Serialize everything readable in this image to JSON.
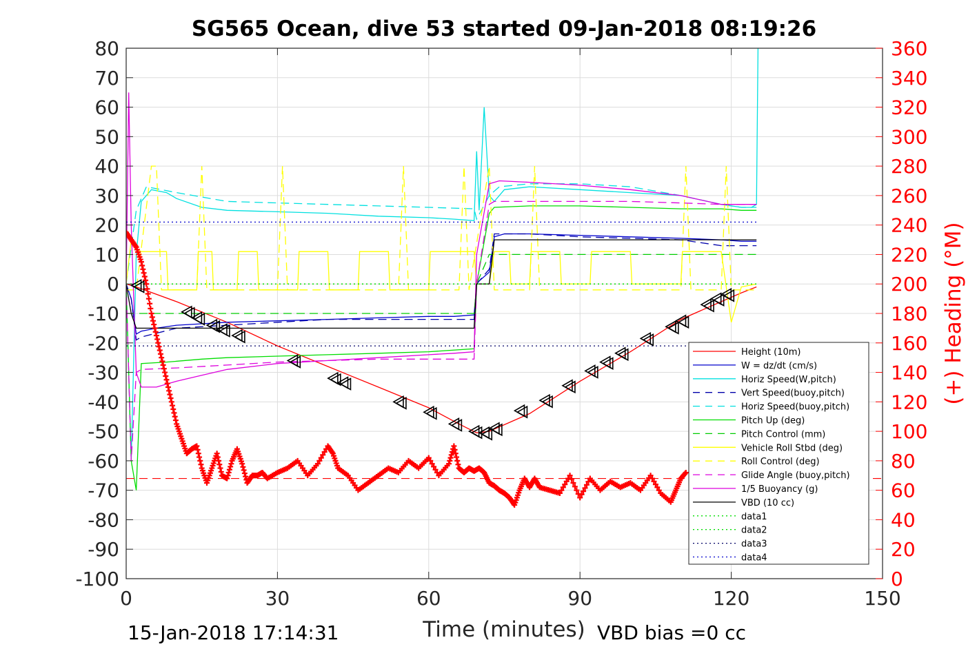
{
  "chart_data": {
    "type": "line",
    "title": "SG565 Ocean, dive 53 started 09-Jan-2018 08:19:26",
    "xlabel": "Time (minutes)",
    "ylabel_right": "(+) Heading (°M)",
    "footer_left": "15-Jan-2018 17:14:31",
    "footer_right": "VBD bias =0 cc",
    "xlim": [
      0,
      150
    ],
    "ylim_left": [
      -100,
      80
    ],
    "ylim_right": [
      0,
      360
    ],
    "x_ticks": [
      "0",
      "30",
      "60",
      "90",
      "120",
      "150"
    ],
    "y_ticks_left": [
      "80",
      "70",
      "60",
      "50",
      "40",
      "30",
      "20",
      "10",
      "0",
      "-10",
      "-20",
      "-30",
      "-40",
      "-50",
      "-60",
      "-70",
      "-80",
      "-90",
      "-100"
    ],
    "y_ticks_right": [
      "360",
      "340",
      "320",
      "300",
      "280",
      "260",
      "240",
      "220",
      "200",
      "180",
      "160",
      "140",
      "120",
      "100",
      "80",
      "60",
      "40",
      "20",
      "0"
    ],
    "grid": true,
    "legend_position": "lower-right",
    "series": [
      {
        "name": "Height (10m)",
        "color": "#ff0000",
        "style": "solid",
        "x": [
          0,
          2,
          10,
          20,
          30,
          40,
          50,
          60,
          66,
          69.5,
          72,
          80,
          90,
          100,
          110,
          118,
          122,
          125
        ],
        "y": [
          0,
          -1,
          -6,
          -13,
          -21,
          -28,
          -35,
          -42,
          -47.5,
          -50.5,
          -50,
          -44,
          -33,
          -23,
          -12,
          -6,
          -3,
          -1
        ]
      },
      {
        "name": "W = dz/dt (cm/s)",
        "color": "#0000cc",
        "style": "solid",
        "x": [
          0,
          1,
          2,
          3,
          6,
          10,
          15,
          20,
          30,
          40,
          50,
          60,
          65,
          69,
          69.5,
          70,
          72,
          73,
          75,
          80,
          90,
          100,
          110,
          118,
          122,
          125
        ],
        "y": [
          0,
          -5,
          -17,
          -16,
          -15,
          -14,
          -13.5,
          -13,
          -12.5,
          -12,
          -11.5,
          -11,
          -11,
          -10.5,
          0,
          1,
          4,
          16,
          17,
          17,
          16.5,
          16,
          15.5,
          15,
          14.5,
          14.5
        ]
      },
      {
        "name": "Horiz Speed(W,pitch)",
        "color": "#00e0e0",
        "style": "solid",
        "x": [
          0,
          1,
          2,
          3,
          5,
          8,
          10,
          15,
          20,
          30,
          40,
          50,
          60,
          65,
          69,
          69.5,
          70,
          71,
          72,
          73,
          75,
          80,
          90,
          100,
          110,
          118,
          122,
          124,
          125,
          125.3
        ],
        "y": [
          0,
          -60,
          10,
          28,
          32,
          31,
          29,
          26,
          25,
          24.5,
          24,
          23,
          22.5,
          22,
          21.5,
          45,
          25,
          60,
          30,
          28,
          32,
          33,
          32,
          31,
          30,
          27,
          26,
          26,
          27,
          80
        ]
      },
      {
        "name": "Vert Speed(buoy,pitch)",
        "color": "#0000aa",
        "style": "dashed",
        "x": [
          0,
          1,
          2,
          3,
          10,
          20,
          30,
          40,
          50,
          60,
          69,
          69.5,
          72,
          73,
          80,
          90,
          100,
          110,
          118,
          122,
          125
        ],
        "y": [
          0,
          -5,
          -19,
          -18,
          -15,
          -14,
          -13,
          -12,
          -12,
          -12,
          -12,
          0,
          5,
          17,
          17,
          16,
          15.5,
          15,
          13,
          13,
          13
        ]
      },
      {
        "name": "Horiz Speed(buoy,pitch)",
        "color": "#00e0e0",
        "style": "dashed",
        "x": [
          0,
          2,
          4,
          10,
          20,
          30,
          40,
          50,
          60,
          69,
          69.5,
          72,
          74,
          80,
          90,
          100,
          110,
          118,
          122,
          125
        ],
        "y": [
          0,
          25,
          33,
          31,
          28,
          27.5,
          27,
          26.5,
          26,
          25.5,
          22,
          30,
          33,
          34,
          34,
          33,
          30,
          27,
          26,
          26
        ]
      },
      {
        "name": "Pitch Up (deg)",
        "color": "#00dd00",
        "style": "solid",
        "x": [
          0,
          1,
          2,
          3,
          8,
          15,
          20,
          30,
          40,
          50,
          60,
          69,
          69.5,
          72,
          73,
          80,
          90,
          100,
          110,
          118,
          122,
          125
        ],
        "y": [
          0,
          -60,
          -70,
          -27,
          -26.5,
          -25.5,
          -25,
          -24.5,
          -24,
          -23.5,
          -23,
          -22,
          0,
          24,
          26,
          26.5,
          26.5,
          26,
          25.5,
          25.5,
          25,
          25
        ]
      },
      {
        "name": "Pitch Control (mm)",
        "color": "#00cc00",
        "style": "dashed",
        "x": [
          0,
          2,
          69,
          69.5,
          72,
          125
        ],
        "y": [
          -10,
          -10,
          -10,
          0,
          10,
          10
        ]
      },
      {
        "name": "Vehicle Roll Stbd (deg)",
        "color": "#ffff00",
        "style": "solid",
        "x": [
          0,
          1,
          2,
          3,
          8,
          8.3,
          14,
          14.3,
          17,
          17.3,
          22,
          22.3,
          26,
          26.3,
          34,
          34.3,
          40,
          40.3,
          46,
          46.3,
          52,
          52.3,
          60,
          60.3,
          69,
          69.5,
          72,
          73,
          76,
          76.3,
          80,
          80.3,
          86,
          86.3,
          92,
          92.3,
          100,
          100.3,
          110,
          110.3,
          118,
          119,
          120,
          122,
          125
        ],
        "y": [
          0,
          15,
          12,
          11,
          11,
          -2,
          -2,
          11,
          11,
          -2,
          -2,
          11,
          11,
          -2,
          -2,
          11,
          11,
          -2,
          -2,
          11,
          11,
          -2,
          -2,
          11,
          11,
          0,
          0,
          11,
          11,
          0,
          0,
          11,
          11,
          0,
          0,
          11,
          11,
          0,
          0,
          11,
          11,
          -1,
          -13,
          -1,
          0
        ]
      },
      {
        "name": "Roll Control (deg)",
        "color": "#ffff00",
        "style": "dashed",
        "x": [
          0,
          2,
          5,
          6,
          7,
          14,
          15,
          16,
          30,
          31,
          32,
          54,
          55,
          56,
          66,
          67,
          68,
          72,
          73,
          80,
          81,
          82,
          110,
          111,
          112,
          118,
          119,
          120,
          125
        ],
        "y": [
          -2,
          -2,
          40,
          40,
          -2,
          -2,
          40,
          -2,
          -2,
          40,
          -2,
          -2,
          40,
          -2,
          -2,
          40,
          -2,
          40,
          -2,
          -2,
          40,
          -2,
          -2,
          40,
          -2,
          -2,
          40,
          -2,
          -2
        ]
      },
      {
        "name": "Glide Angle (buoy,pitch)",
        "color": "#dd00dd",
        "style": "dashed",
        "x": [
          0,
          1,
          2,
          3,
          10,
          20,
          30,
          40,
          50,
          60,
          69,
          69.5,
          72,
          73,
          80,
          90,
          100,
          110,
          118,
          122,
          125
        ],
        "y": [
          0,
          -60,
          -30,
          -29,
          -28.5,
          -27.5,
          -26.5,
          -26,
          -25.5,
          -25.5,
          -25.5,
          0,
          27,
          28,
          28,
          28,
          28,
          27.5,
          27,
          27,
          27
        ]
      },
      {
        "name": "1/5 Buoyancy (g)",
        "color": "#dd00dd",
        "style": "solid",
        "x": [
          0,
          0.5,
          1,
          2,
          3,
          6,
          10,
          15,
          20,
          30,
          40,
          50,
          60,
          65,
          69,
          69.5,
          72,
          74,
          80,
          90,
          100,
          110,
          118,
          122,
          125
        ],
        "y": [
          0,
          65,
          20,
          -30,
          -35,
          -35,
          -33,
          -31,
          -29,
          -27,
          -26,
          -25,
          -24,
          -23.5,
          -23,
          10,
          34,
          35,
          34.5,
          33.5,
          32,
          30,
          27,
          27,
          27
        ]
      },
      {
        "name": "VBD (10 cc)",
        "color": "#000000",
        "style": "solid",
        "x": [
          0,
          1,
          2,
          69,
          69.5,
          72,
          73,
          125
        ],
        "y": [
          0,
          -10,
          -15,
          -15,
          0,
          0,
          15,
          15
        ]
      },
      {
        "name": "data1",
        "color": "#00dd00",
        "style": "dotted",
        "x": [
          0,
          125
        ],
        "y": [
          0,
          0
        ]
      },
      {
        "name": "data2",
        "color": "#00dd00",
        "style": "dotted",
        "x": [
          0,
          125
        ],
        "y": [
          0,
          0
        ]
      },
      {
        "name": "data3",
        "color": "#000066",
        "style": "dotted",
        "x": [
          0,
          125
        ],
        "y": [
          -21,
          -21
        ]
      },
      {
        "name": "data4",
        "color": "#0000cc",
        "style": "dotted",
        "x": [
          0,
          125
        ],
        "y": [
          21,
          21
        ]
      }
    ],
    "heading_series": {
      "axis": "right",
      "color": "#ff0000",
      "marker": "plus",
      "x": [
        0,
        1,
        2,
        3,
        4,
        5,
        6,
        7,
        8,
        9,
        10,
        11,
        12,
        13,
        14,
        15,
        16,
        17,
        18,
        19,
        20,
        21,
        22,
        23,
        24,
        25,
        26,
        27,
        28,
        30,
        32,
        34,
        36,
        38,
        40,
        41,
        42,
        44,
        46,
        48,
        50,
        52,
        54,
        56,
        58,
        60,
        62,
        64,
        65,
        66,
        67,
        68,
        69,
        70,
        71,
        72,
        73,
        74,
        75,
        76,
        77,
        78,
        79,
        80,
        81,
        82,
        84,
        86,
        88,
        90,
        92,
        94,
        96,
        98,
        100,
        102,
        104,
        106,
        108,
        109,
        110,
        111
      ],
      "y": [
        235,
        230,
        225,
        215,
        200,
        180,
        165,
        150,
        135,
        120,
        105,
        95,
        85,
        88,
        90,
        75,
        65,
        75,
        85,
        70,
        68,
        80,
        88,
        78,
        65,
        70,
        70,
        72,
        68,
        72,
        75,
        80,
        70,
        78,
        90,
        85,
        75,
        70,
        60,
        65,
        70,
        75,
        72,
        80,
        75,
        82,
        70,
        78,
        90,
        75,
        72,
        75,
        73,
        75,
        72,
        65,
        63,
        60,
        58,
        55,
        50,
        60,
        68,
        62,
        68,
        62,
        60,
        58,
        70,
        55,
        68,
        60,
        66,
        62,
        65,
        60,
        70,
        58,
        52,
        60,
        68,
        72
      ]
    },
    "heading_reference": {
      "axis": "right",
      "color": "#ff0000",
      "style": "dashed",
      "y": 68
    },
    "waypoint_markers": {
      "color": "#000000",
      "marker": "triangle-left",
      "x": [
        2,
        12,
        14,
        17,
        19,
        22,
        33,
        41,
        43,
        54,
        60,
        65,
        69,
        71,
        73,
        78,
        83,
        87.5,
        92,
        95,
        98,
        103,
        108,
        110,
        115,
        117,
        119
      ],
      "y": [
        -0.5,
        -9.5,
        -11.5,
        -14,
        -15.5,
        -17.5,
        -26,
        -32,
        -33.5,
        -40,
        -43.5,
        -47.5,
        -50,
        -50.5,
        -49,
        -43,
        -39.5,
        -34.5,
        -29.5,
        -26.5,
        -23.5,
        -18.5,
        -14.5,
        -12.5,
        -7,
        -5,
        -3.5
      ]
    }
  }
}
